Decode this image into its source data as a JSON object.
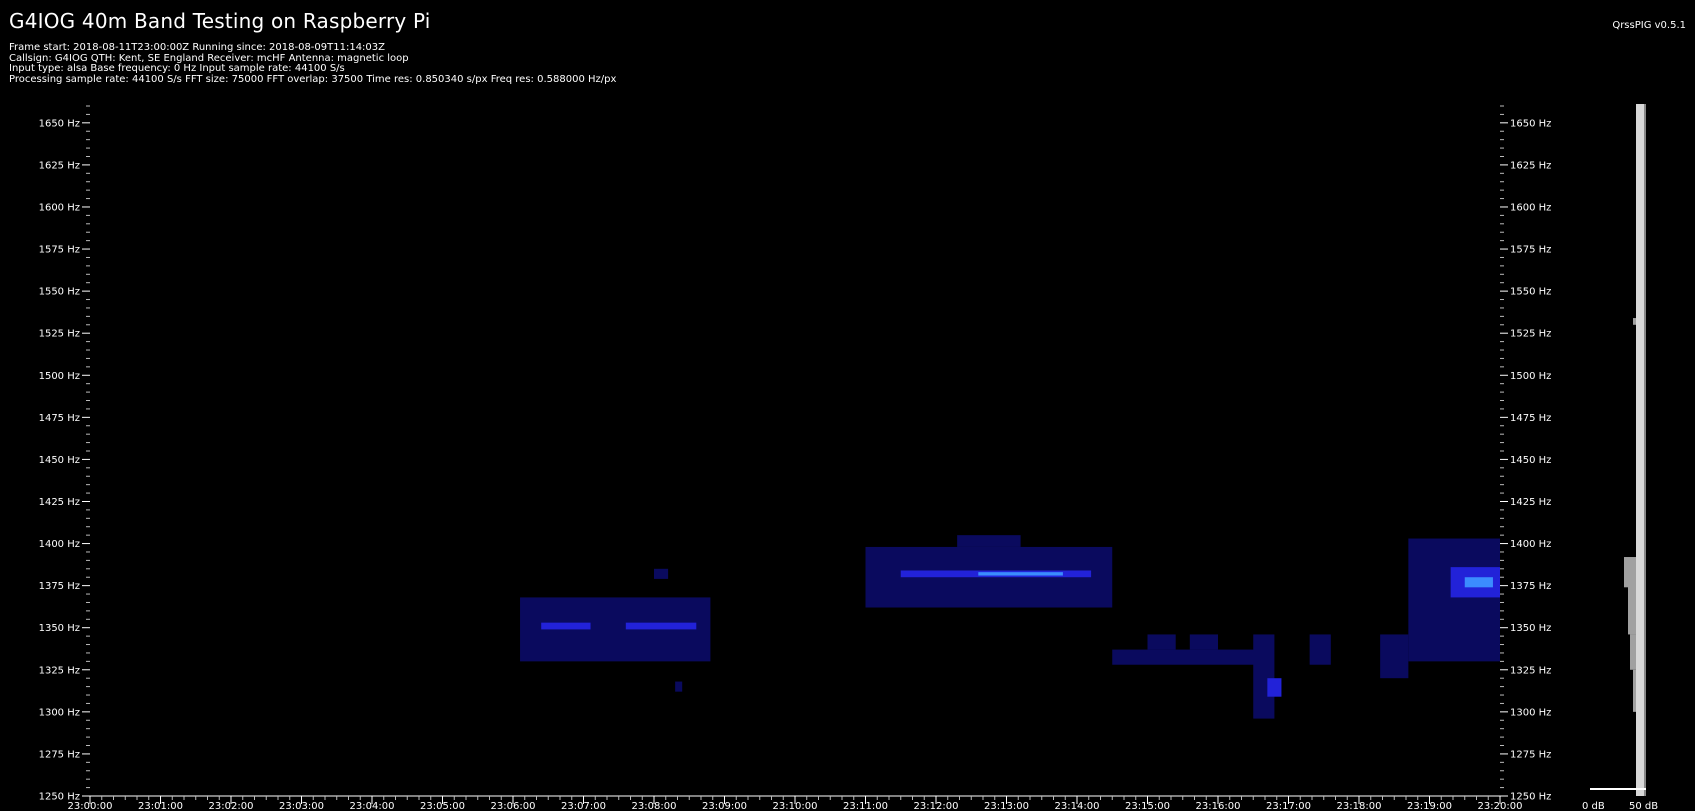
{
  "header": {
    "title": "G4IOG 40m Band Testing on Raspberry Pi",
    "version": "QrssPIG v0.5.1",
    "info_lines": [
      "Frame start: 2018-08-11T23:00:00Z Running since: 2018-08-09T11:14:03Z",
      "Callsign: G4IOG QTH: Kent, SE England Receiver: mcHF Antenna: magnetic loop",
      "Input type: alsa Base frequency: 0 Hz Input sample rate: 44100 S/s",
      "Processing sample rate: 44100 S/s FFT size: 75000 FFT overlap: 37500 Time res: 0.850340 s/px Freq res: 0.588000 Hz/px"
    ]
  },
  "colors": {
    "background": "#000000",
    "text": "#ffffff",
    "signal_low": "#0a0a5e",
    "signal_mid": "#2222d8",
    "signal_high": "#3b8cff"
  },
  "chart_data": {
    "type": "heatmap",
    "y_axis_label_unit": "Hz",
    "y_ticks": [
      "1250 Hz",
      "1275 Hz",
      "1300 Hz",
      "1325 Hz",
      "1350 Hz",
      "1375 Hz",
      "1400 Hz",
      "1425 Hz",
      "1450 Hz",
      "1475 Hz",
      "1500 Hz",
      "1525 Hz",
      "1550 Hz",
      "1575 Hz",
      "1600 Hz",
      "1625 Hz",
      "1650 Hz"
    ],
    "y_range": [
      1250,
      1660
    ],
    "x_ticks": [
      "23:00:00",
      "23:01:00",
      "23:02:00",
      "23:03:00",
      "23:04:00",
      "23:05:00",
      "23:06:00",
      "23:07:00",
      "23:08:00",
      "23:09:00",
      "23:10:00",
      "23:11:00",
      "23:12:00",
      "23:13:00",
      "23:14:00",
      "23:15:00",
      "23:16:00",
      "23:17:00",
      "23:18:00",
      "23:19:00",
      "23:20:00"
    ],
    "x_range_minutes": [
      0,
      20
    ],
    "signals": [
      {
        "t_start": 6.1,
        "t_end": 8.8,
        "f_low": 1330,
        "f_high": 1368,
        "level": "low"
      },
      {
        "t_start": 6.4,
        "t_end": 7.1,
        "f_low": 1349,
        "f_high": 1353,
        "level": "mid"
      },
      {
        "t_start": 7.6,
        "t_end": 8.6,
        "f_low": 1349,
        "f_high": 1353,
        "level": "mid"
      },
      {
        "t_start": 8.3,
        "t_end": 8.4,
        "f_low": 1312,
        "f_high": 1318,
        "level": "low"
      },
      {
        "t_start": 8.0,
        "t_end": 8.2,
        "f_low": 1379,
        "f_high": 1385,
        "level": "low"
      },
      {
        "t_start": 11.0,
        "t_end": 14.5,
        "f_low": 1362,
        "f_high": 1398,
        "level": "low"
      },
      {
        "t_start": 12.3,
        "t_end": 13.2,
        "f_low": 1398,
        "f_high": 1405,
        "level": "low"
      },
      {
        "t_start": 11.5,
        "t_end": 14.2,
        "f_low": 1380,
        "f_high": 1384,
        "level": "mid"
      },
      {
        "t_start": 12.6,
        "t_end": 13.8,
        "f_low": 1381,
        "f_high": 1383,
        "level": "high"
      },
      {
        "t_start": 14.5,
        "t_end": 16.7,
        "f_low": 1328,
        "f_high": 1337,
        "level": "low"
      },
      {
        "t_start": 15.0,
        "t_end": 15.4,
        "f_low": 1337,
        "f_high": 1346,
        "level": "low"
      },
      {
        "t_start": 15.6,
        "t_end": 16.0,
        "f_low": 1337,
        "f_high": 1346,
        "level": "low"
      },
      {
        "t_start": 16.5,
        "t_end": 16.8,
        "f_low": 1296,
        "f_high": 1346,
        "level": "low"
      },
      {
        "t_start": 16.7,
        "t_end": 16.9,
        "f_low": 1309,
        "f_high": 1320,
        "level": "mid"
      },
      {
        "t_start": 17.3,
        "t_end": 17.6,
        "f_low": 1328,
        "f_high": 1346,
        "level": "low"
      },
      {
        "t_start": 18.3,
        "t_end": 18.7,
        "f_low": 1320,
        "f_high": 1346,
        "level": "low"
      },
      {
        "t_start": 18.7,
        "t_end": 20.0,
        "f_low": 1330,
        "f_high": 1403,
        "level": "low"
      },
      {
        "t_start": 19.3,
        "t_end": 20.0,
        "f_low": 1368,
        "f_high": 1386,
        "level": "mid"
      },
      {
        "t_start": 19.5,
        "t_end": 19.9,
        "f_low": 1374,
        "f_high": 1380,
        "level": "high"
      }
    ],
    "colorbar_labels": [
      "0 dB",
      "50 dB"
    ]
  }
}
